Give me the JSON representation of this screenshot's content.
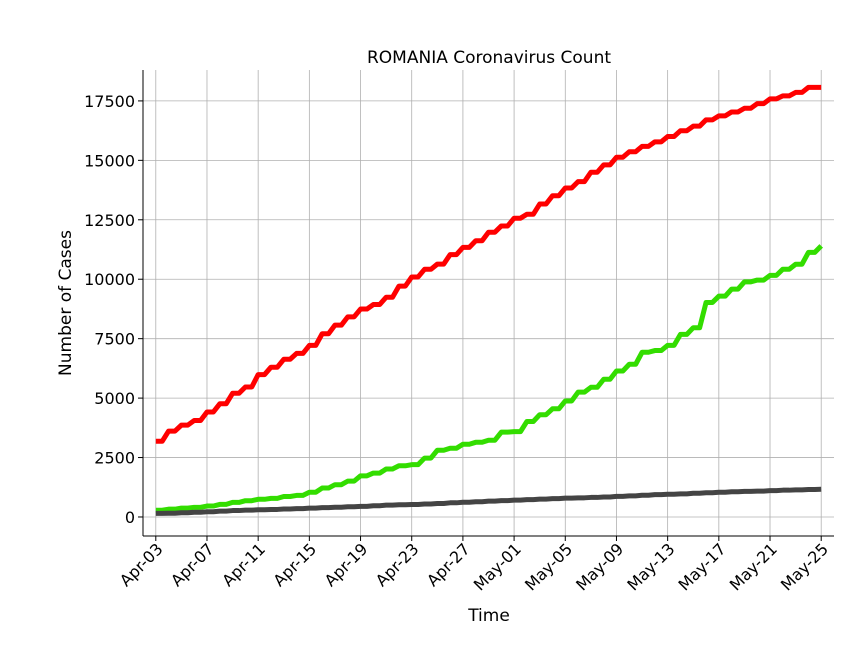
{
  "chart_data": {
    "type": "line",
    "title": "ROMANIA Coronavirus Count",
    "xlabel": "Time",
    "ylabel": "Number of Cases",
    "x_start": "2020-04-03",
    "x_end": "2020-05-25",
    "xlim": [
      "2020-04-02",
      "2020-05-26"
    ],
    "ylim": [
      -800,
      18800
    ],
    "yticks": [
      0,
      2500,
      5000,
      7500,
      10000,
      12500,
      15000,
      17500
    ],
    "ytick_labels": [
      "0",
      "2500",
      "5000",
      "7500",
      "10000",
      "12500",
      "15000",
      "17500"
    ],
    "xtick_labels": [
      "Apr-03",
      "Apr-07",
      "Apr-11",
      "Apr-15",
      "Apr-19",
      "Apr-23",
      "Apr-27",
      "May-01",
      "May-05",
      "May-09",
      "May-13",
      "May-17",
      "May-21",
      "May-25"
    ],
    "grid": true,
    "legend": "none",
    "series": [
      {
        "color": "#ff0000",
        "values": [
          3183,
          3613,
          3864,
          4057,
          4417,
          4761,
          5202,
          5467,
          5990,
          6300,
          6633,
          6879,
          7216,
          7707,
          8067,
          8418,
          8746,
          8936,
          9242,
          9710,
          10096,
          10417,
          10635,
          11036,
          11339,
          11616,
          11978,
          12240,
          12567,
          12732,
          13163,
          13512,
          13837,
          14107,
          14499,
          14811,
          15131,
          15362,
          15588,
          15778,
          16002,
          16247,
          16437,
          16704,
          16871,
          17036,
          17191,
          17387,
          17585,
          17712,
          17857,
          18070,
          18070
        ]
      },
      {
        "color": "#33dd00",
        "values": [
          283,
          329,
          372,
          406,
          460,
          528,
          613,
          685,
          744,
          783,
          862,
          907,
          1040,
          1217,
          1357,
          1508,
          1730,
          1846,
          2017,
          2153,
          2200,
          2478,
          2806,
          2890,
          3058,
          3141,
          3229,
          3568,
          3590,
          4017,
          4302,
          4550,
          4880,
          5250,
          5454,
          5792,
          6141,
          6423,
          6928,
          7000,
          7218,
          7680,
          7961,
          9023,
          9287,
          9586,
          9890,
          9964,
          10162,
          10421,
          10630,
          11127,
          11403
        ]
      },
      {
        "color": "#444444",
        "values": [
          151,
          157,
          176,
          198,
          221,
          245,
          270,
          287,
          302,
          317,
          336,
          351,
          372,
          392,
          411,
          428,
          447,
          474,
          497,
          512,
          527,
          545,
          567,
          596,
          619,
          641,
          666,
          689,
          710,
          730,
          750,
          771,
          792,
          806,
          822,
          842,
          866,
          888,
          913,
          939,
          958,
          970,
          996,
          1020,
          1040,
          1060,
          1076,
          1088,
          1107,
          1127,
          1142,
          1156,
          1168
        ]
      }
    ]
  }
}
